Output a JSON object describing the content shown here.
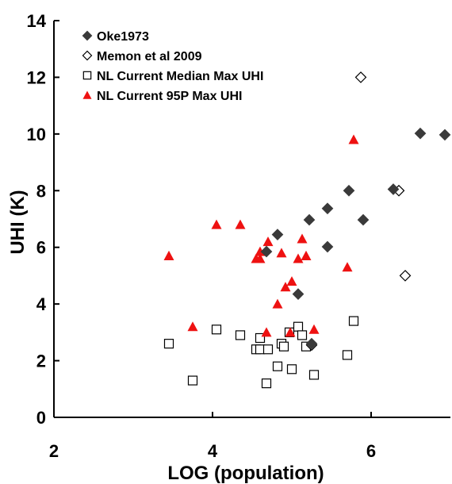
{
  "chart_data": {
    "type": "scatter",
    "xlabel": "LOG (population)",
    "ylabel": "UHI (K)",
    "xlim": [
      2,
      7
    ],
    "ylim": [
      0,
      14
    ],
    "x_ticks": [
      2,
      4,
      6
    ],
    "y_ticks": [
      0,
      2,
      4,
      6,
      8,
      10,
      12,
      14
    ],
    "grid": false,
    "legend_position": "top-left",
    "series": [
      {
        "name": "Oke1973",
        "marker": "diamond-filled",
        "color": "#3a3a3a",
        "points": [
          {
            "x": 4.68,
            "y": 5.85
          },
          {
            "x": 4.82,
            "y": 6.45
          },
          {
            "x": 5.08,
            "y": 4.35
          },
          {
            "x": 5.22,
            "y": 6.97
          },
          {
            "x": 5.45,
            "y": 7.37
          },
          {
            "x": 5.45,
            "y": 6.02
          },
          {
            "x": 5.72,
            "y": 8.0
          },
          {
            "x": 5.9,
            "y": 6.97
          },
          {
            "x": 6.28,
            "y": 8.05
          },
          {
            "x": 6.62,
            "y": 10.02
          },
          {
            "x": 6.93,
            "y": 9.97
          },
          {
            "x": 5.25,
            "y": 2.6
          }
        ]
      },
      {
        "name": "Memon et al 2009",
        "marker": "diamond-open",
        "color": "#000000",
        "points": [
          {
            "x": 5.87,
            "y": 12.0
          },
          {
            "x": 6.35,
            "y": 8.0
          },
          {
            "x": 6.43,
            "y": 5.0
          },
          {
            "x": 5.25,
            "y": 2.55
          }
        ]
      },
      {
        "name": "NL Current Median Max UHI",
        "marker": "square-open",
        "color": "#000000",
        "points": [
          {
            "x": 3.45,
            "y": 2.6
          },
          {
            "x": 3.75,
            "y": 1.3
          },
          {
            "x": 4.05,
            "y": 3.1
          },
          {
            "x": 4.35,
            "y": 2.9
          },
          {
            "x": 4.55,
            "y": 2.4
          },
          {
            "x": 4.6,
            "y": 2.8
          },
          {
            "x": 4.6,
            "y": 2.4
          },
          {
            "x": 4.7,
            "y": 2.4
          },
          {
            "x": 4.68,
            "y": 1.2
          },
          {
            "x": 4.82,
            "y": 1.8
          },
          {
            "x": 4.87,
            "y": 2.6
          },
          {
            "x": 4.9,
            "y": 2.5
          },
          {
            "x": 4.97,
            "y": 3.0
          },
          {
            "x": 5.0,
            "y": 1.7
          },
          {
            "x": 5.08,
            "y": 3.2
          },
          {
            "x": 5.13,
            "y": 2.9
          },
          {
            "x": 5.18,
            "y": 2.5
          },
          {
            "x": 5.28,
            "y": 1.5
          },
          {
            "x": 5.7,
            "y": 2.2
          },
          {
            "x": 5.78,
            "y": 3.4
          }
        ]
      },
      {
        "name": "NL Current 95P Max UHI",
        "marker": "triangle-filled",
        "color": "#ee1111",
        "points": [
          {
            "x": 3.45,
            "y": 5.7
          },
          {
            "x": 3.75,
            "y": 3.2
          },
          {
            "x": 4.05,
            "y": 6.8
          },
          {
            "x": 4.35,
            "y": 6.8
          },
          {
            "x": 4.55,
            "y": 5.6
          },
          {
            "x": 4.6,
            "y": 5.6
          },
          {
            "x": 4.6,
            "y": 5.85
          },
          {
            "x": 4.7,
            "y": 6.2
          },
          {
            "x": 4.68,
            "y": 3.0
          },
          {
            "x": 4.82,
            "y": 4.0
          },
          {
            "x": 4.87,
            "y": 5.8
          },
          {
            "x": 4.92,
            "y": 4.6
          },
          {
            "x": 5.0,
            "y": 4.8
          },
          {
            "x": 4.98,
            "y": 3.0
          },
          {
            "x": 5.08,
            "y": 5.6
          },
          {
            "x": 5.13,
            "y": 6.3
          },
          {
            "x": 5.18,
            "y": 5.7
          },
          {
            "x": 5.28,
            "y": 3.1
          },
          {
            "x": 5.7,
            "y": 5.3
          },
          {
            "x": 5.78,
            "y": 9.8
          }
        ]
      }
    ]
  }
}
